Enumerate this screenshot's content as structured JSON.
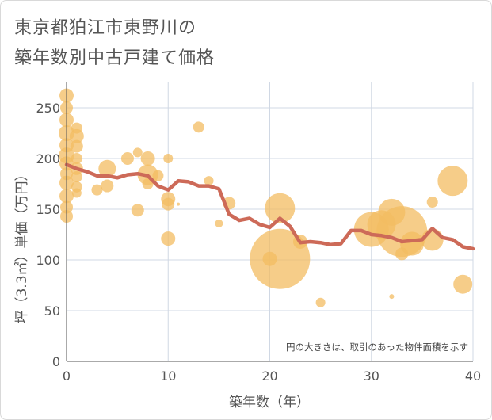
{
  "title_line1": "東京都狛江市東野川の",
  "title_line2": "築年数別中古戸建て価格",
  "colors": {
    "bubble": "#f3bc62",
    "line": "#cd6a58",
    "grid": "#d0d8e4",
    "text": "#555555"
  },
  "chart_data": {
    "type": "scatter",
    "title": "東京都狛江市東野川の築年数別中古戸建て価格",
    "xlabel": "築年数（年）",
    "ylabel": "坪（3.3㎡）単価（万円）",
    "xlim": [
      0,
      40
    ],
    "ylim": [
      0,
      275
    ],
    "xticks": [
      "0",
      "10",
      "20",
      "30",
      "40"
    ],
    "yticks": [
      "0",
      "50",
      "100",
      "150",
      "200",
      "250"
    ],
    "xtick_values": [
      0,
      10,
      20,
      30,
      40
    ],
    "ytick_values": [
      0,
      50,
      100,
      150,
      200,
      250
    ],
    "note": "円の大きさは、取引のあった物件面積を示す",
    "scatter": [
      {
        "x": 0,
        "y": 262,
        "s": 9
      },
      {
        "x": 0,
        "y": 250,
        "s": 8
      },
      {
        "x": 0,
        "y": 238,
        "s": 9
      },
      {
        "x": 0,
        "y": 225,
        "s": 10
      },
      {
        "x": 0,
        "y": 213,
        "s": 9
      },
      {
        "x": 0,
        "y": 203,
        "s": 10
      },
      {
        "x": 0,
        "y": 195,
        "s": 9
      },
      {
        "x": 0,
        "y": 185,
        "s": 8
      },
      {
        "x": 0,
        "y": 176,
        "s": 9
      },
      {
        "x": 0,
        "y": 163,
        "s": 9
      },
      {
        "x": 0,
        "y": 152,
        "s": 8
      },
      {
        "x": 0,
        "y": 143,
        "s": 8
      },
      {
        "x": 1,
        "y": 230,
        "s": 7
      },
      {
        "x": 1,
        "y": 222,
        "s": 9
      },
      {
        "x": 1,
        "y": 212,
        "s": 8
      },
      {
        "x": 1,
        "y": 200,
        "s": 7
      },
      {
        "x": 1,
        "y": 190,
        "s": 8
      },
      {
        "x": 1,
        "y": 182,
        "s": 7
      },
      {
        "x": 1,
        "y": 172,
        "s": 7
      },
      {
        "x": 1,
        "y": 166,
        "s": 6
      },
      {
        "x": 3,
        "y": 169,
        "s": 7
      },
      {
        "x": 4,
        "y": 190,
        "s": 11
      },
      {
        "x": 4,
        "y": 173,
        "s": 8
      },
      {
        "x": 6,
        "y": 200,
        "s": 8
      },
      {
        "x": 7,
        "y": 206,
        "s": 6
      },
      {
        "x": 7,
        "y": 149,
        "s": 8
      },
      {
        "x": 8,
        "y": 200,
        "s": 9
      },
      {
        "x": 8,
        "y": 184,
        "s": 13
      },
      {
        "x": 8,
        "y": 175,
        "s": 7
      },
      {
        "x": 9,
        "y": 183,
        "s": 7
      },
      {
        "x": 10,
        "y": 200,
        "s": 6
      },
      {
        "x": 10,
        "y": 160,
        "s": 9
      },
      {
        "x": 10,
        "y": 155,
        "s": 8
      },
      {
        "x": 10,
        "y": 121,
        "s": 9
      },
      {
        "x": 11,
        "y": 155,
        "s": 2
      },
      {
        "x": 13,
        "y": 231,
        "s": 7
      },
      {
        "x": 14,
        "y": 178,
        "s": 6
      },
      {
        "x": 15,
        "y": 136,
        "s": 5
      },
      {
        "x": 16,
        "y": 156,
        "s": 8
      },
      {
        "x": 20,
        "y": 101,
        "s": 9
      },
      {
        "x": 21,
        "y": 151,
        "s": 19
      },
      {
        "x": 21,
        "y": 101,
        "s": 38
      },
      {
        "x": 23,
        "y": 118,
        "s": 9
      },
      {
        "x": 25,
        "y": 58,
        "s": 6
      },
      {
        "x": 30,
        "y": 130,
        "s": 22
      },
      {
        "x": 31,
        "y": 135,
        "s": 18
      },
      {
        "x": 32,
        "y": 147,
        "s": 17
      },
      {
        "x": 32,
        "y": 64,
        "s": 3
      },
      {
        "x": 33,
        "y": 106,
        "s": 8
      },
      {
        "x": 33,
        "y": 128,
        "s": 32
      },
      {
        "x": 34,
        "y": 116,
        "s": 15
      },
      {
        "x": 36,
        "y": 157,
        "s": 7
      },
      {
        "x": 36,
        "y": 120,
        "s": 14
      },
      {
        "x": 38,
        "y": 178,
        "s": 19
      },
      {
        "x": 39,
        "y": 76,
        "s": 12
      }
    ],
    "trend_line": {
      "x": [
        0,
        1,
        2,
        3,
        4,
        5,
        6,
        7,
        8,
        9,
        10,
        11,
        12,
        13,
        14,
        15,
        16,
        17,
        18,
        19,
        20,
        21,
        22,
        23,
        24,
        25,
        26,
        27,
        28,
        29,
        30,
        31,
        32,
        33,
        34,
        35,
        36,
        37,
        38,
        39,
        40
      ],
      "y": [
        194,
        190,
        187,
        183,
        183,
        181,
        184,
        185,
        183,
        173,
        169,
        178,
        177,
        173,
        173,
        170,
        145,
        139,
        141,
        135,
        132,
        141,
        133,
        117,
        118,
        117,
        115,
        116,
        129,
        129,
        125,
        124,
        122,
        118,
        119,
        120,
        131,
        122,
        120,
        113,
        111
      ]
    }
  }
}
